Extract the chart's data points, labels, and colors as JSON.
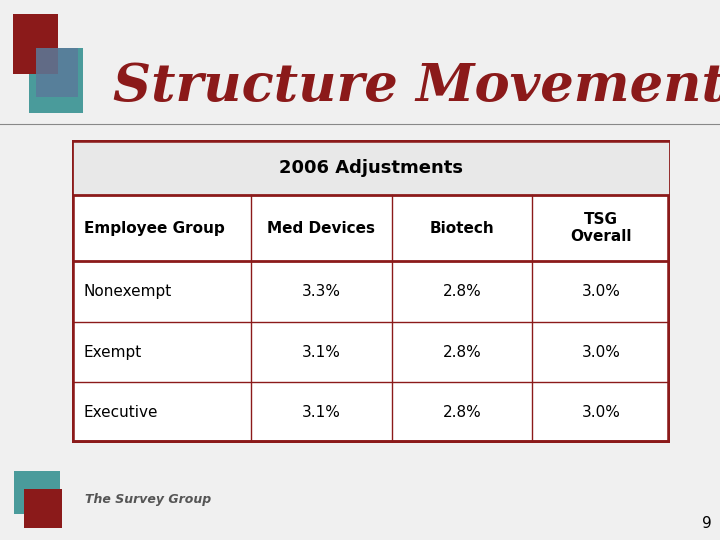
{
  "title": "Structure Movement",
  "table_header": "2006 Adjustments",
  "columns": [
    "Employee Group",
    "Med Devices",
    "Biotech",
    "TSG\nOverall"
  ],
  "rows": [
    [
      "Nonexempt",
      "3.3%",
      "2.8%",
      "3.0%"
    ],
    [
      "Exempt",
      "3.1%",
      "2.8%",
      "3.0%"
    ],
    [
      "Executive",
      "3.1%",
      "2.8%",
      "3.0%"
    ]
  ],
  "bg_color": "#f5f5f5",
  "table_border_color": "#8B1A1A",
  "header_bg": "#f0f0f0",
  "title_color": "#8B1A1A",
  "page_number": "9",
  "slide_bg": "#f0f0f0"
}
